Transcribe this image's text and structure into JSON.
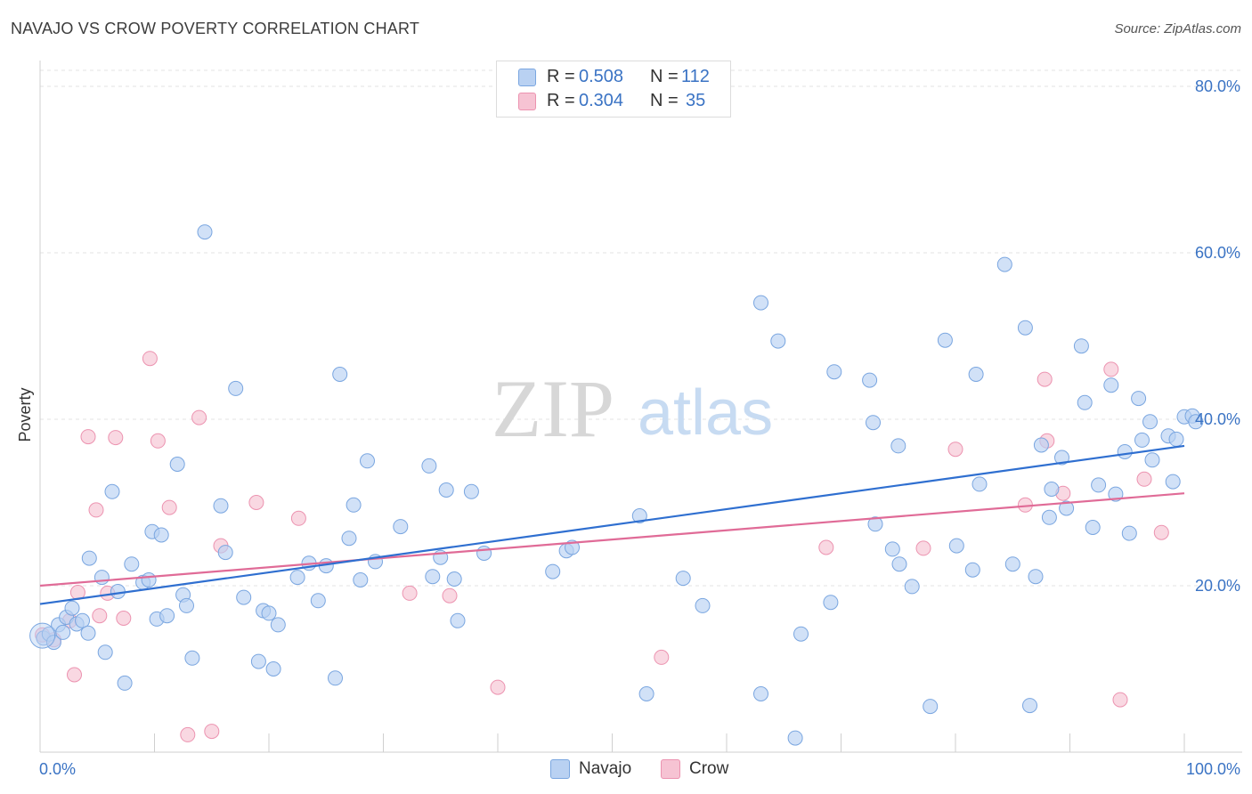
{
  "title": "NAVAJO VS CROW POVERTY CORRELATION CHART",
  "source": "Source: ZipAtlas.com",
  "watermark": {
    "zip": "ZIP",
    "atlas": "atlas"
  },
  "colors": {
    "navajo_fill": "#b9d1f2",
    "navajo_stroke": "#7aa6e0",
    "navajo_line": "#2f6fd0",
    "crow_fill": "#f6c3d3",
    "crow_stroke": "#ec93b0",
    "crow_line": "#e06b97",
    "axis_label": "#3a73c4",
    "grid": "#e3e3e3"
  },
  "legend_stats": {
    "navajo": {
      "r_label": "R =",
      "r_value": "0.508",
      "n_label": "N =",
      "n_value": "112"
    },
    "crow": {
      "r_label": "R =",
      "r_value": "0.304",
      "n_label": "N =",
      "n_value": "35"
    }
  },
  "bottom_legend": [
    "Navajo",
    "Crow"
  ],
  "chart_data": {
    "type": "scatter",
    "title": "NAVAJO VS CROW POVERTY CORRELATION CHART",
    "xlabel": "",
    "ylabel": "Poverty",
    "xlim": [
      0,
      100
    ],
    "ylim": [
      0,
      80
    ],
    "x_tick_labels": [
      "0.0%",
      "100.0%"
    ],
    "y_ticks": [
      20,
      40,
      60,
      80
    ],
    "y_tick_labels": [
      "20.0%",
      "40.0%",
      "60.0%",
      "80.0%"
    ],
    "grid": true,
    "legend_placement": "top-center",
    "series": [
      {
        "name": "Navajo",
        "r": 0.508,
        "n": 112,
        "trend": {
          "x": [
            0,
            100
          ],
          "y": [
            17.8,
            36.8
          ]
        },
        "points": [
          [
            0.3,
            13.7
          ],
          [
            0.8,
            14.2
          ],
          [
            1.2,
            13.2
          ],
          [
            1.6,
            15.3
          ],
          [
            2.0,
            14.4
          ],
          [
            2.3,
            16.2
          ],
          [
            2.8,
            17.3
          ],
          [
            3.2,
            15.4
          ],
          [
            3.7,
            15.8
          ],
          [
            4.2,
            14.3
          ],
          [
            4.3,
            23.3
          ],
          [
            5.4,
            21.0
          ],
          [
            5.7,
            12.0
          ],
          [
            6.3,
            31.3
          ],
          [
            6.8,
            19.3
          ],
          [
            7.4,
            8.3
          ],
          [
            8.0,
            22.6
          ],
          [
            9.0,
            20.4
          ],
          [
            9.5,
            20.7
          ],
          [
            9.8,
            26.5
          ],
          [
            10.2,
            16.0
          ],
          [
            10.6,
            26.1
          ],
          [
            11.1,
            16.4
          ],
          [
            12.0,
            34.6
          ],
          [
            12.5,
            18.9
          ],
          [
            12.8,
            17.6
          ],
          [
            13.3,
            11.3
          ],
          [
            14.4,
            62.5
          ],
          [
            15.8,
            29.6
          ],
          [
            16.2,
            24.0
          ],
          [
            17.1,
            43.7
          ],
          [
            17.8,
            18.6
          ],
          [
            19.1,
            10.9
          ],
          [
            19.5,
            17.0
          ],
          [
            20.0,
            16.7
          ],
          [
            20.4,
            10.0
          ],
          [
            20.8,
            15.3
          ],
          [
            22.5,
            21.0
          ],
          [
            23.5,
            22.7
          ],
          [
            24.3,
            18.2
          ],
          [
            25.0,
            22.4
          ],
          [
            25.8,
            8.9
          ],
          [
            26.2,
            45.4
          ],
          [
            27.0,
            25.7
          ],
          [
            27.4,
            29.7
          ],
          [
            28.0,
            20.7
          ],
          [
            28.6,
            35.0
          ],
          [
            29.3,
            22.9
          ],
          [
            31.5,
            27.1
          ],
          [
            34.0,
            34.4
          ],
          [
            34.3,
            21.1
          ],
          [
            35.0,
            23.4
          ],
          [
            35.5,
            31.5
          ],
          [
            36.2,
            20.8
          ],
          [
            36.5,
            15.8
          ],
          [
            37.7,
            31.3
          ],
          [
            38.8,
            23.9
          ],
          [
            44.8,
            21.7
          ],
          [
            46.0,
            24.2
          ],
          [
            46.5,
            24.6
          ],
          [
            52.4,
            28.4
          ],
          [
            53.0,
            7.0
          ],
          [
            56.2,
            20.9
          ],
          [
            57.9,
            17.6
          ],
          [
            63.0,
            54.0
          ],
          [
            63.0,
            7.0
          ],
          [
            64.5,
            49.4
          ],
          [
            66.0,
            1.7
          ],
          [
            66.5,
            14.2
          ],
          [
            69.1,
            18.0
          ],
          [
            69.4,
            45.7
          ],
          [
            72.5,
            44.7
          ],
          [
            72.8,
            39.6
          ],
          [
            73.0,
            27.4
          ],
          [
            74.5,
            24.4
          ],
          [
            75.0,
            36.8
          ],
          [
            75.1,
            22.6
          ],
          [
            76.2,
            19.9
          ],
          [
            77.8,
            5.5
          ],
          [
            79.1,
            49.5
          ],
          [
            80.1,
            24.8
          ],
          [
            81.5,
            21.9
          ],
          [
            81.8,
            45.4
          ],
          [
            82.1,
            32.2
          ],
          [
            84.3,
            58.6
          ],
          [
            85.0,
            22.6
          ],
          [
            86.1,
            51.0
          ],
          [
            86.5,
            5.6
          ],
          [
            87.0,
            21.1
          ],
          [
            87.5,
            36.9
          ],
          [
            88.2,
            28.2
          ],
          [
            88.4,
            31.6
          ],
          [
            89.3,
            35.4
          ],
          [
            89.7,
            29.3
          ],
          [
            91.0,
            48.8
          ],
          [
            91.3,
            42.0
          ],
          [
            92.0,
            27.0
          ],
          [
            92.5,
            32.1
          ],
          [
            93.6,
            44.1
          ],
          [
            94.0,
            31.0
          ],
          [
            94.8,
            36.1
          ],
          [
            95.2,
            26.3
          ],
          [
            96.0,
            42.5
          ],
          [
            96.3,
            37.5
          ],
          [
            97.0,
            39.7
          ],
          [
            97.2,
            35.1
          ],
          [
            98.6,
            38.0
          ],
          [
            99.0,
            32.5
          ],
          [
            99.3,
            37.6
          ],
          [
            100.0,
            40.3
          ],
          [
            100.7,
            40.4
          ],
          [
            101.0,
            39.7
          ]
        ]
      },
      {
        "name": "Crow",
        "r": 0.304,
        "n": 35,
        "trend": {
          "x": [
            0,
            100
          ],
          "y": [
            20.0,
            31.1
          ]
        },
        "points": [
          [
            0.2,
            14.1
          ],
          [
            1.2,
            13.5
          ],
          [
            2.6,
            15.8
          ],
          [
            3.0,
            9.3
          ],
          [
            3.3,
            19.2
          ],
          [
            4.2,
            37.9
          ],
          [
            4.9,
            29.1
          ],
          [
            5.2,
            16.4
          ],
          [
            5.9,
            19.1
          ],
          [
            6.6,
            37.8
          ],
          [
            7.3,
            16.1
          ],
          [
            9.6,
            47.3
          ],
          [
            10.3,
            37.4
          ],
          [
            11.3,
            29.4
          ],
          [
            12.9,
            2.1
          ],
          [
            13.9,
            40.2
          ],
          [
            15.0,
            2.5
          ],
          [
            15.8,
            24.8
          ],
          [
            18.9,
            30.0
          ],
          [
            22.6,
            28.1
          ],
          [
            32.3,
            19.1
          ],
          [
            35.8,
            18.8
          ],
          [
            40.0,
            7.8
          ],
          [
            54.3,
            11.4
          ],
          [
            68.7,
            24.6
          ],
          [
            77.2,
            24.5
          ],
          [
            80.0,
            36.4
          ],
          [
            86.1,
            29.7
          ],
          [
            87.8,
            44.8
          ],
          [
            88.0,
            37.4
          ],
          [
            89.4,
            31.1
          ],
          [
            93.6,
            46.0
          ],
          [
            94.4,
            6.3
          ],
          [
            96.5,
            32.8
          ],
          [
            98.0,
            26.4
          ]
        ]
      }
    ]
  }
}
